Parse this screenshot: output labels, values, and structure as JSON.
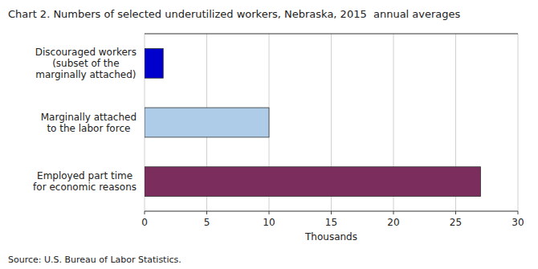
{
  "chart_data": {
    "type": "bar",
    "orientation": "horizontal",
    "title": "Chart 2. Numbers of selected underutilized workers, Nebraska, 2015  annual averages",
    "categories": [
      "Discouraged workers\n(subset of the\nmarginally attached)",
      "Marginally attached\nto the labor force",
      "Employed part time\nfor economic reasons"
    ],
    "values": [
      1.5,
      10.0,
      27.0
    ],
    "colors": [
      "#0000cc",
      "#aecce8",
      "#7b2d5e"
    ],
    "xlabel": "Thousands",
    "xlim": [
      0,
      30
    ],
    "xticks": [
      0,
      5,
      10,
      15,
      20,
      25,
      30
    ],
    "grid": true,
    "annotations": [
      "Source: U.S. Bureau of Labor Statistics."
    ]
  }
}
